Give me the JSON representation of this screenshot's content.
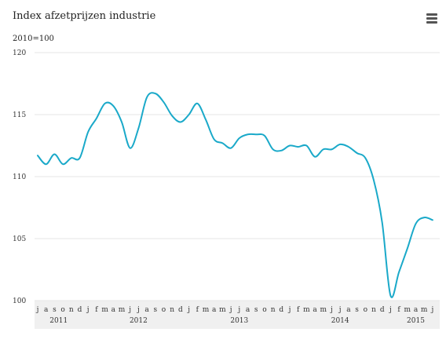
{
  "title": "Index afzetprijzen industrie",
  "subtitle": "2010=100",
  "menu": {
    "icon": "hamburger-menu-icon"
  },
  "colors": {
    "line": "#1aa9c9",
    "grid": "#e6e6e6",
    "axis_band": "#f0f0f0"
  },
  "chart_data": {
    "type": "line",
    "title": "Index afzetprijzen industrie",
    "ylabel": "2010=100",
    "ylim": [
      100,
      120
    ],
    "yticks": [
      100,
      105,
      110,
      115,
      120
    ],
    "ytick_labels": [
      "100",
      "105",
      "110",
      "115",
      "120"
    ],
    "x": [
      "2011-07",
      "2011-08",
      "2011-09",
      "2011-10",
      "2011-11",
      "2011-12",
      "2012-01",
      "2012-02",
      "2012-03",
      "2012-04",
      "2012-05",
      "2012-06",
      "2012-07",
      "2012-08",
      "2012-09",
      "2012-10",
      "2012-11",
      "2012-12",
      "2013-01",
      "2013-02",
      "2013-03",
      "2013-04",
      "2013-05",
      "2013-06",
      "2013-07",
      "2013-08",
      "2013-09",
      "2013-10",
      "2013-11",
      "2013-12",
      "2014-01",
      "2014-02",
      "2014-03",
      "2014-04",
      "2014-05",
      "2014-06",
      "2014-07",
      "2014-08",
      "2014-09",
      "2014-10",
      "2014-11",
      "2014-12",
      "2015-01",
      "2015-02",
      "2015-03",
      "2015-04",
      "2015-05",
      "2015-06"
    ],
    "month_labels": [
      "j",
      "a",
      "s",
      "o",
      "n",
      "d",
      "j",
      "f",
      "m",
      "a",
      "m",
      "j",
      "j",
      "a",
      "s",
      "o",
      "n",
      "d",
      "j",
      "f",
      "m",
      "a",
      "m",
      "j",
      "j",
      "a",
      "s",
      "o",
      "n",
      "d",
      "j",
      "f",
      "m",
      "a",
      "m",
      "j",
      "j",
      "a",
      "s",
      "o",
      "n",
      "d",
      "j",
      "f",
      "m",
      "a",
      "m",
      "j"
    ],
    "year_labels": [
      {
        "label": "2011",
        "month_index": 2.5
      },
      {
        "label": "2012",
        "month_index": 12
      },
      {
        "label": "2013",
        "month_index": 24
      },
      {
        "label": "2014",
        "month_index": 36
      },
      {
        "label": "2015",
        "month_index": 45
      }
    ],
    "series": [
      {
        "values": [
          111.7,
          111.0,
          111.8,
          111.0,
          111.5,
          111.5,
          113.6,
          114.7,
          115.9,
          115.7,
          114.4,
          112.3,
          113.9,
          116.4,
          116.7,
          116.0,
          114.9,
          114.4,
          115.0,
          115.9,
          114.6,
          113.0,
          112.7,
          112.3,
          113.1,
          113.4,
          113.4,
          113.3,
          112.2,
          112.1,
          112.5,
          112.4,
          112.5,
          111.6,
          112.2,
          112.2,
          112.6,
          112.4,
          111.9,
          111.5,
          109.7,
          106.3,
          100.4,
          102.3,
          104.2,
          106.2,
          106.7,
          106.5
        ]
      }
    ]
  }
}
